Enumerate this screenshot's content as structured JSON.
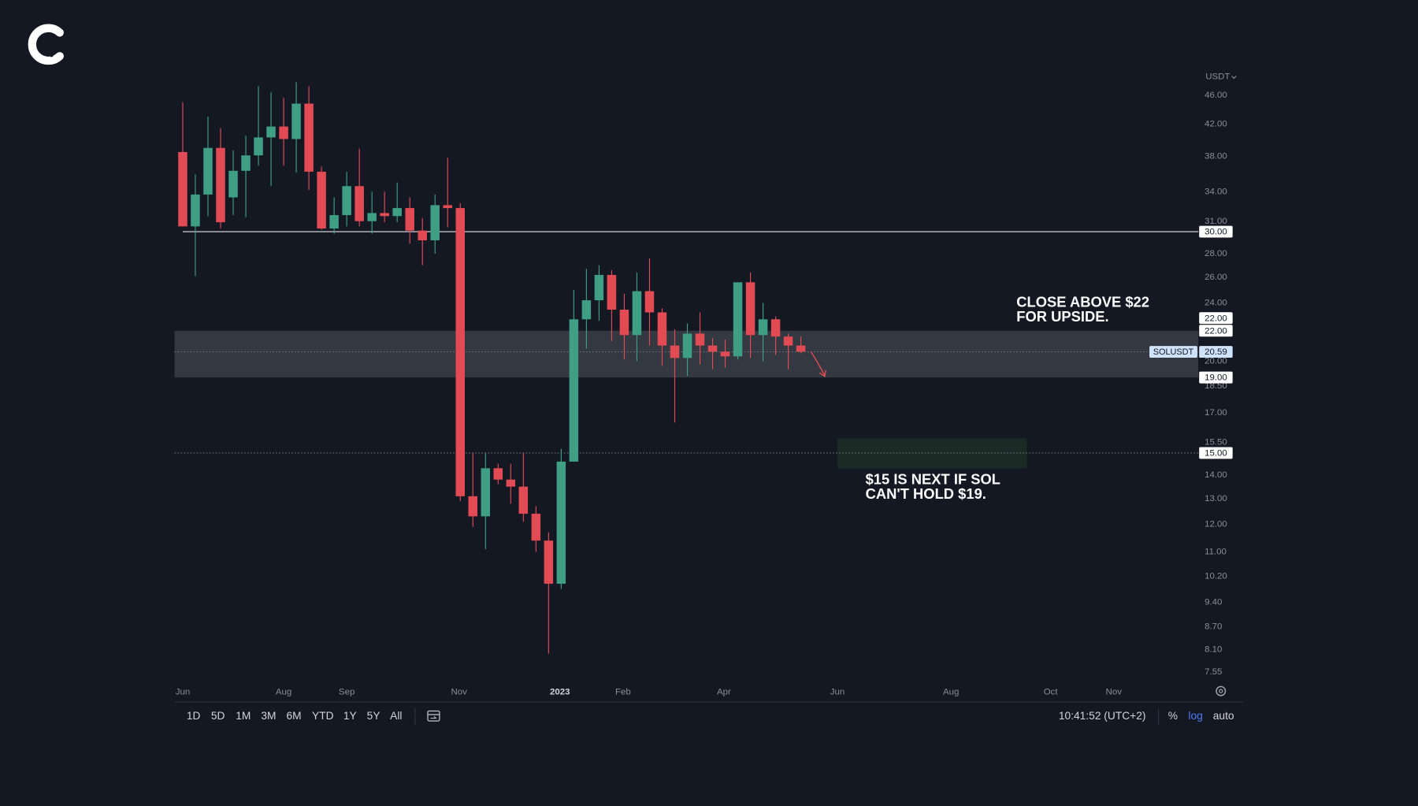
{
  "chart_data": {
    "type": "candlestick",
    "currency": "USDT",
    "log_scale": true,
    "xlim": [
      -0.65,
      80.5
    ],
    "xticks": [
      {
        "value": 0,
        "label": "Jun"
      },
      {
        "value": 8.0,
        "label": "Aug"
      },
      {
        "value": 13.0,
        "label": "Sep"
      },
      {
        "value": 21.9,
        "label": "Nov"
      },
      {
        "value": 29.9,
        "label": "2023",
        "bold": true
      },
      {
        "value": 34.9,
        "label": "Feb"
      },
      {
        "value": 42.9,
        "label": "Apr"
      },
      {
        "value": 51.9,
        "label": "Jun"
      },
      {
        "value": 60.9,
        "label": "Aug"
      },
      {
        "value": 68.8,
        "label": "Oct"
      },
      {
        "value": 73.8,
        "label": "Nov"
      }
    ],
    "ylim": [
      7.3,
      49.4
    ],
    "yticks": [
      {
        "value": 46,
        "label": "46.00"
      },
      {
        "value": 42,
        "label": "42.00"
      },
      {
        "value": 38,
        "label": "38.00"
      },
      {
        "value": 34,
        "label": "34.00"
      },
      {
        "value": 31,
        "label": "31.00"
      },
      {
        "value": 28,
        "label": "28.00"
      },
      {
        "value": 26,
        "label": "26.00"
      },
      {
        "value": 24,
        "label": "24.00"
      },
      {
        "value": 22,
        "label": "22.00"
      },
      {
        "value": 20,
        "label": "20.00"
      },
      {
        "value": 18.5,
        "label": "18.50"
      },
      {
        "value": 17,
        "label": "17.00"
      },
      {
        "value": 15.5,
        "label": "15.50"
      },
      {
        "value": 14,
        "label": "14.00"
      },
      {
        "value": 13,
        "label": "13.00"
      },
      {
        "value": 12,
        "label": "12.00"
      },
      {
        "value": 11,
        "label": "11.00"
      },
      {
        "value": 10.2,
        "label": "10.20"
      },
      {
        "value": 9.4,
        "label": "9.40"
      },
      {
        "value": 8.7,
        "label": "8.70"
      },
      {
        "value": 8.1,
        "label": "8.10"
      },
      {
        "value": 7.55,
        "label": "7.55"
      }
    ],
    "colors": {
      "up": "#3f9f83",
      "down": "#e34b54"
    },
    "candles": {
      "open": [
        38.5,
        30.5,
        33.7,
        39,
        33.4,
        36.3,
        38.1,
        40.3,
        41.7,
        40.1,
        44.8,
        36.2,
        30.3,
        31.6,
        34.6,
        31,
        31.8,
        31.5,
        32.3,
        30.1,
        29.2,
        32.6,
        32.3,
        13.1,
        12.3,
        14.3,
        13.8,
        13.5,
        12.4,
        11.4,
        9.96,
        14.6,
        22.8,
        24.2,
        26.2,
        23.5,
        21.7,
        24.9,
        23.3,
        21,
        20.2,
        21.8,
        21,
        20.6,
        20.3,
        25.6,
        21.7,
        22.8,
        21.6,
        21
      ],
      "high": [
        45,
        35.9,
        43,
        41.5,
        38.7,
        40.5,
        47.3,
        46.4,
        45.6,
        47.9,
        47.3,
        36.8,
        33.4,
        36.2,
        38.9,
        34,
        34,
        35,
        33.4,
        31.3,
        33.7,
        37.8,
        32.8,
        15,
        15,
        14.5,
        14.5,
        15,
        12.7,
        11.7,
        15.2,
        25,
        26.7,
        27,
        26.6,
        24.7,
        26.4,
        27.6,
        23.6,
        22.1,
        22.5,
        23.3,
        21.5,
        21.4,
        25.6,
        26.4,
        24,
        23,
        21.8,
        21.6
      ],
      "low": [
        30.5,
        26.1,
        31.5,
        30.3,
        31.6,
        31.4,
        36.9,
        34.6,
        36.9,
        36.1,
        34.2,
        30.2,
        29.8,
        30.5,
        30.5,
        29.8,
        30.9,
        30.9,
        28.9,
        27,
        28,
        30.4,
        12.9,
        11.9,
        11.1,
        13.6,
        12.8,
        12.1,
        11,
        8,
        9.8,
        14.6,
        20.8,
        22.7,
        21.3,
        20.1,
        20,
        21,
        19.7,
        16.5,
        19.1,
        19.8,
        19.5,
        19.6,
        20.1,
        20.2,
        20,
        20.4,
        19.5,
        20.5
      ],
      "close": [
        30.5,
        33.7,
        39,
        30.9,
        36.3,
        38.1,
        40.3,
        41.7,
        40.1,
        44.8,
        36.2,
        30.3,
        31.6,
        34.6,
        31,
        31.8,
        31.5,
        32.3,
        30.1,
        29.2,
        32.6,
        32.3,
        13.1,
        12.3,
        14.3,
        13.8,
        13.5,
        12.4,
        11.4,
        9.96,
        14.6,
        22.8,
        24.2,
        26.2,
        23.5,
        21.7,
        24.9,
        23.3,
        21,
        20.2,
        21.8,
        21,
        20.6,
        20.3,
        25.6,
        21.7,
        22.8,
        21.6,
        21,
        20.6
      ]
    },
    "zone": {
      "low": 19,
      "high": 22,
      "color": "#3a3e47"
    },
    "target_box": {
      "x": [
        51.9,
        66.9
      ],
      "y": [
        14.3,
        15.7
      ],
      "color": "#1b2a24"
    },
    "levels": [
      {
        "value": 30,
        "label": "30.00",
        "line": "solid"
      },
      {
        "value": 22,
        "label": "22.00"
      },
      {
        "value": 22,
        "label": "22.00"
      },
      {
        "value": 20.59,
        "label": "20.59",
        "tag": "SOLUSDT",
        "line": "dotted",
        "color": "#cfe3fa"
      },
      {
        "value": 19,
        "label": "19.00"
      },
      {
        "value": 15,
        "label": "15.00",
        "line": "dotted"
      }
    ],
    "annotations": [
      {
        "lines": [
          "CLOSE ABOVE $22",
          "FOR UPSIDE."
        ]
      },
      {
        "lines": [
          "$15 IS NEXT IF SOL",
          "CAN'T HOLD $19."
        ]
      }
    ]
  },
  "toolbar": {
    "ranges": [
      "1D",
      "5D",
      "1M",
      "3M",
      "6M",
      "YTD",
      "1Y",
      "5Y",
      "All"
    ],
    "time": "10:41:52 (UTC+2)",
    "options": [
      {
        "label": "%"
      },
      {
        "label": "log",
        "active": true
      },
      {
        "label": "auto"
      }
    ]
  }
}
